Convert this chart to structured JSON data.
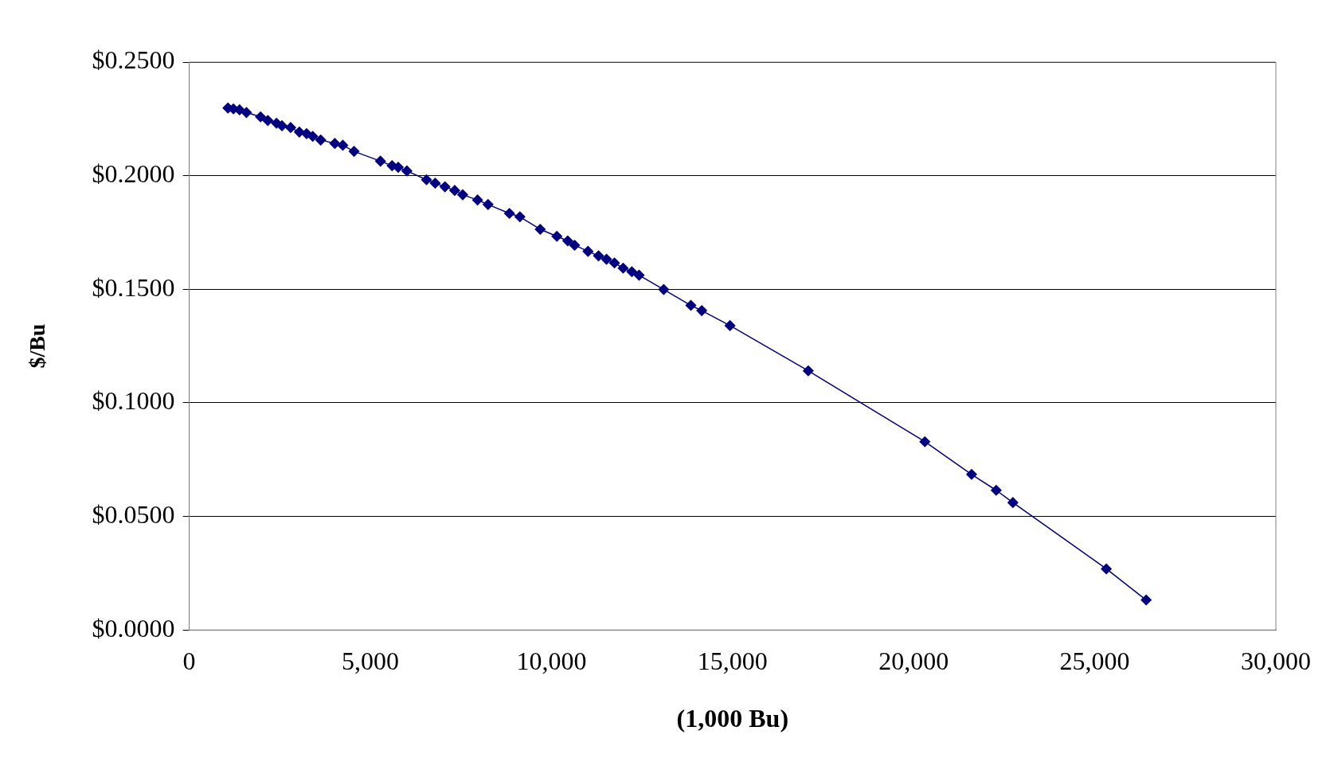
{
  "chart_data": {
    "type": "line",
    "xlabel": "(1,000 Bu)",
    "ylabel": "$/Bu",
    "x": [
      1070,
      1220,
      1390,
      1580,
      1970,
      2170,
      2410,
      2560,
      2800,
      3040,
      3240,
      3410,
      3630,
      4020,
      4240,
      4550,
      5280,
      5600,
      5770,
      6010,
      6550,
      6790,
      7060,
      7330,
      7550,
      7960,
      8250,
      8840,
      9130,
      9690,
      10150,
      10450,
      10640,
      11010,
      11300,
      11520,
      11740,
      11980,
      12220,
      12420,
      13100,
      13850,
      14150,
      14930,
      17090,
      20310,
      21600,
      22280,
      22740,
      25320,
      26420
    ],
    "series": [
      {
        "color": "#000080",
        "values": [
          0.2298,
          0.2294,
          0.229,
          0.2278,
          0.2259,
          0.2243,
          0.2231,
          0.222,
          0.2212,
          0.2192,
          0.2185,
          0.2173,
          0.2157,
          0.2142,
          0.2134,
          0.2107,
          0.2064,
          0.2044,
          0.2037,
          0.2021,
          0.1982,
          0.1967,
          0.1951,
          0.1935,
          0.1916,
          0.1893,
          0.1873,
          0.1834,
          0.1819,
          0.1764,
          0.1733,
          0.1713,
          0.1694,
          0.1667,
          0.1647,
          0.1632,
          0.1616,
          0.1593,
          0.1577,
          0.1562,
          0.1499,
          0.1429,
          0.1406,
          0.134,
          0.1141,
          0.0829,
          0.0685,
          0.0615,
          0.0561,
          0.0269,
          0.0132
        ]
      }
    ],
    "xlim": [
      0,
      30000
    ],
    "xticks": [
      0,
      {
        "value": 5000,
        "label": "5,000"
      },
      {
        "value": 10000,
        "label": "10,000"
      },
      {
        "value": 15000,
        "label": "15,000"
      },
      {
        "value": 20000,
        "label": "20,000"
      },
      {
        "value": 25000,
        "label": "25,000"
      },
      {
        "value": 30000,
        "label": "30,000"
      }
    ],
    "ylim": [
      0,
      0.25
    ],
    "yticks": [
      {
        "value": 0,
        "label": "$0.0000"
      },
      {
        "value": 0.05,
        "label": "$0.0500"
      },
      {
        "value": 0.1,
        "label": "$0.1000"
      },
      {
        "value": 0.15,
        "label": "$0.1500"
      },
      {
        "value": 0.2,
        "label": "$0.2000"
      },
      {
        "value": 0.25,
        "label": "$0.2500"
      }
    ],
    "grid": "y",
    "marker": "diamond",
    "line_style": "solid",
    "legend": false
  }
}
